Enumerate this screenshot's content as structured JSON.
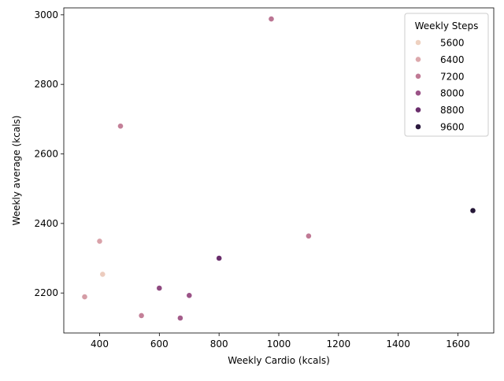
{
  "chart_data": {
    "type": "scatter",
    "xlabel": "Weekly Cardio (kcals)",
    "ylabel": "Weekly average (kcals)",
    "xlim": [
      280,
      1720
    ],
    "ylim": [
      2085,
      3020
    ],
    "x_ticks": [
      400,
      600,
      800,
      1000,
      1200,
      1400,
      1600
    ],
    "y_ticks": [
      2200,
      2400,
      2600,
      2800,
      3000
    ],
    "grid": false,
    "legend": {
      "title": "Weekly Steps",
      "position": "top-right",
      "entries": [
        {
          "label": "5600",
          "color": "#eed1c0"
        },
        {
          "label": "6400",
          "color": "#dca8ac"
        },
        {
          "label": "7200",
          "color": "#c07a95"
        },
        {
          "label": "8000",
          "color": "#9b5387"
        },
        {
          "label": "8800",
          "color": "#6a2e6c"
        },
        {
          "label": "9600",
          "color": "#2b1a3e"
        }
      ]
    },
    "color_scale": {
      "stops": [
        {
          "value": 5200,
          "color": "#f4dcc9"
        },
        {
          "value": 5600,
          "color": "#eed1c0"
        },
        {
          "value": 6400,
          "color": "#dca8ac"
        },
        {
          "value": 7200,
          "color": "#c07a95"
        },
        {
          "value": 8000,
          "color": "#9b5387"
        },
        {
          "value": 8800,
          "color": "#6a2e6c"
        },
        {
          "value": 9600,
          "color": "#2b1a3e"
        },
        {
          "value": 10000,
          "color": "#1e1430"
        }
      ]
    },
    "points": [
      {
        "x": 975,
        "y": 2988,
        "steps": 7300
      },
      {
        "x": 470,
        "y": 2680,
        "steps": 7100
      },
      {
        "x": 1650,
        "y": 2437,
        "steps": 9800
      },
      {
        "x": 1100,
        "y": 2364,
        "steps": 7200
      },
      {
        "x": 400,
        "y": 2349,
        "steps": 6500
      },
      {
        "x": 800,
        "y": 2300,
        "steps": 8800
      },
      {
        "x": 410,
        "y": 2254,
        "steps": 5700
      },
      {
        "x": 600,
        "y": 2214,
        "steps": 8200
      },
      {
        "x": 700,
        "y": 2193,
        "steps": 8000
      },
      {
        "x": 350,
        "y": 2189,
        "steps": 6600
      },
      {
        "x": 540,
        "y": 2135,
        "steps": 7100
      },
      {
        "x": 670,
        "y": 2128,
        "steps": 7800
      }
    ]
  }
}
